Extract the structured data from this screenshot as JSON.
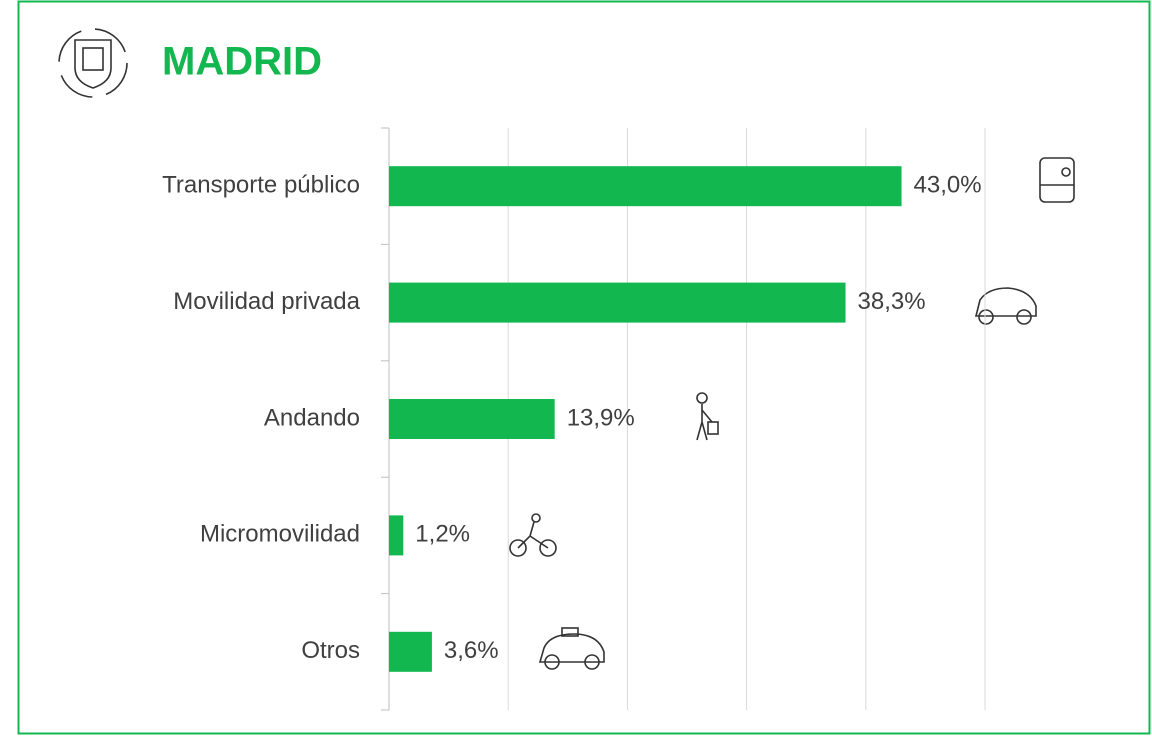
{
  "chart_data": {
    "type": "bar",
    "orientation": "horizontal",
    "title": "MADRID",
    "categories": [
      "Transporte público",
      "Movilidad privada",
      "Andando",
      "Micromovilidad",
      "Otros"
    ],
    "values": [
      43.0,
      38.3,
      13.9,
      1.2,
      3.6
    ],
    "value_labels": [
      "43,0%",
      "38,3%",
      "13,9%",
      "1,2%",
      "3,6%"
    ],
    "color": "#12b84f",
    "xlim": [
      0,
      50
    ],
    "xticks": [
      0,
      10,
      20,
      30,
      40,
      50
    ],
    "grid": true
  }
}
